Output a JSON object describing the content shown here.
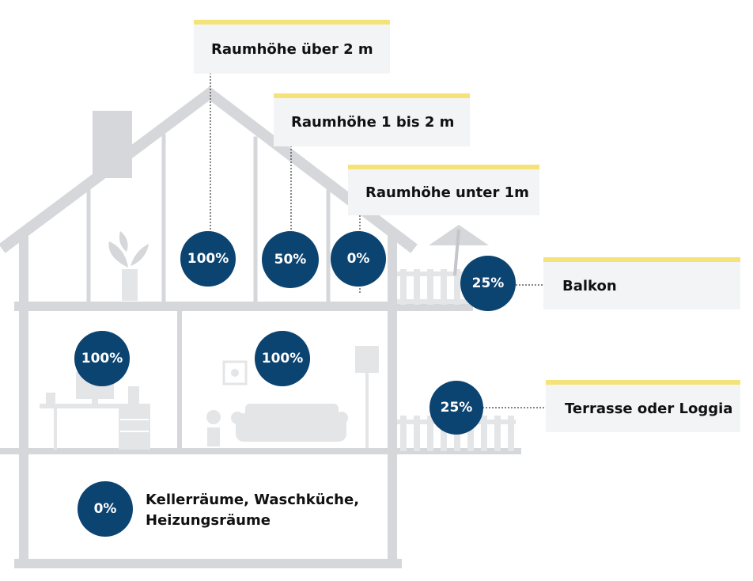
{
  "labels": {
    "raumhoehe_ueber_2m": "Raumhöhe über 2 m",
    "raumhoehe_1_bis_2m": "Raumhöhe 1 bis 2 m",
    "raumhoehe_unter_1m": "Raumhöhe unter 1m",
    "balkon": "Balkon",
    "terrasse": "Terrasse oder Loggia",
    "keller_line1": "Kellerräume, Waschküche,",
    "keller_line2": "Heizungsräume"
  },
  "badges": {
    "attic_over_2m": "100%",
    "attic_1_to_2m": "50%",
    "attic_under_1m": "0%",
    "balcony": "25%",
    "ground_left": "100%",
    "ground_right": "100%",
    "terrace": "25%",
    "basement": "0%"
  },
  "colors": {
    "house": "#d5d7da",
    "badge": "#0b4371",
    "label_bg": "#f3f4f5",
    "label_accent": "#f5e37a"
  },
  "icons": [
    "plant-icon",
    "computer-icon",
    "desk-icon",
    "sofa-icon",
    "floor-lamp-icon",
    "umbrella-icon",
    "railing-icon",
    "picture-frame-icon"
  ]
}
